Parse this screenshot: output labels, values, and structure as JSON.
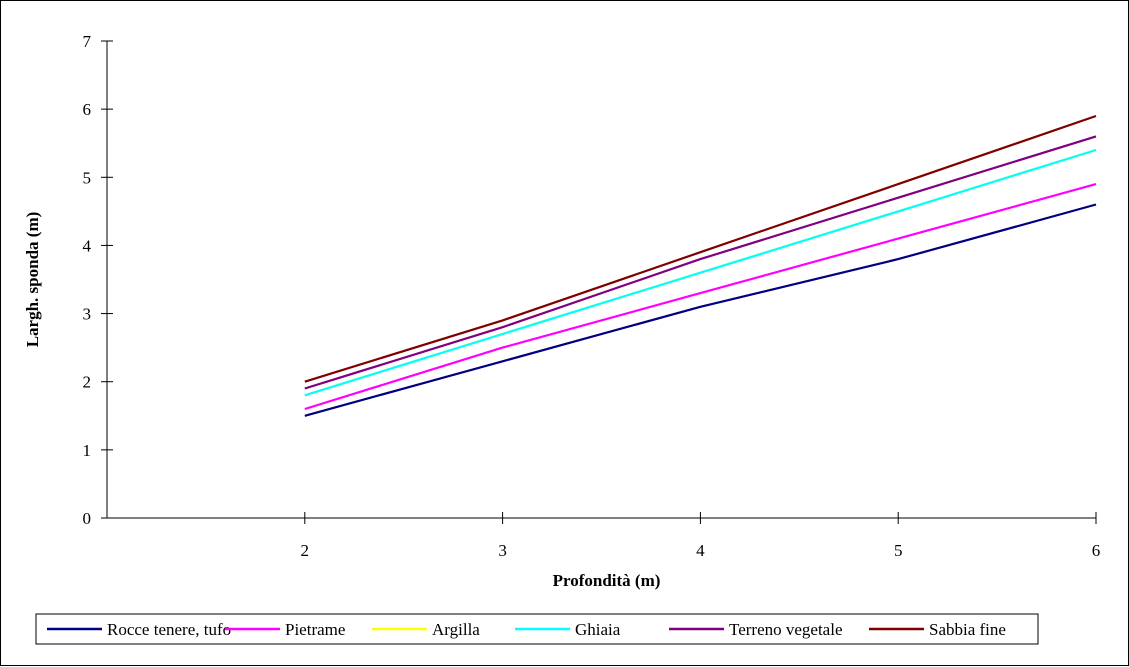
{
  "chart_data": {
    "type": "line",
    "title": "",
    "xlabel": "Profondità (m)",
    "ylabel": "Largh. sponda (m)",
    "x": [
      2,
      3,
      4,
      5,
      6
    ],
    "xlim": [
      1,
      6
    ],
    "ylim": [
      0,
      7
    ],
    "xticks": [
      2,
      3,
      4,
      5,
      6
    ],
    "yticks": [
      0,
      1,
      2,
      3,
      4,
      5,
      6,
      7
    ],
    "grid": false,
    "legend_position": "bottom",
    "series": [
      {
        "name": "Rocce tenere, tufo",
        "color": "#000080",
        "values": [
          1.5,
          2.3,
          3.1,
          3.8,
          4.6
        ]
      },
      {
        "name": "Pietrame",
        "color": "#FF00FF",
        "values": [
          1.6,
          2.5,
          3.3,
          4.1,
          4.9
        ]
      },
      {
        "name": "Argilla",
        "color": "#FFFF00",
        "values": [
          1.8,
          2.7,
          3.6,
          4.5,
          5.4
        ]
      },
      {
        "name": "Ghiaia",
        "color": "#00FFFF",
        "values": [
          1.8,
          2.7,
          3.6,
          4.5,
          5.4
        ]
      },
      {
        "name": "Terreno vegetale",
        "color": "#800080",
        "values": [
          1.9,
          2.8,
          3.8,
          4.7,
          5.6
        ]
      },
      {
        "name": "Sabbia fine",
        "color": "#800000",
        "values": [
          2.0,
          2.9,
          3.9,
          4.9,
          5.9
        ]
      }
    ]
  }
}
